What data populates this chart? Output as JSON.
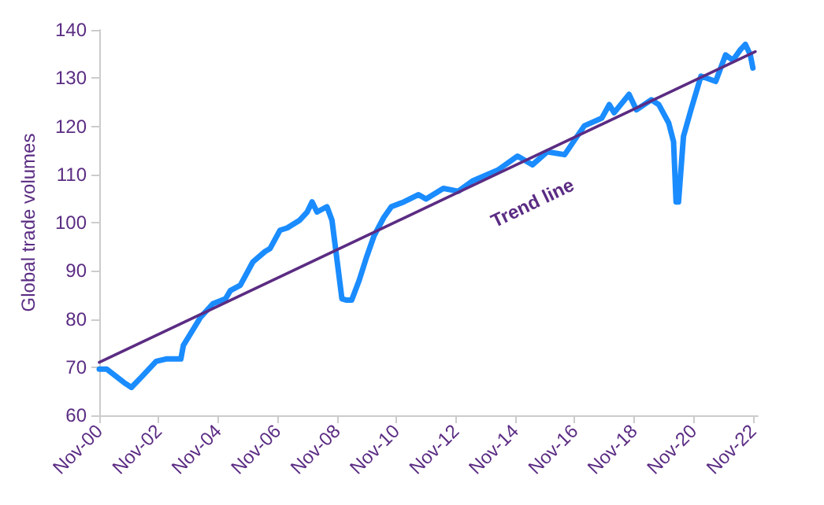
{
  "chart_data": {
    "type": "line",
    "ylabel": "Global trade volumes",
    "xlim": [
      "2000-11",
      "2023-01"
    ],
    "ylim": [
      60,
      140
    ],
    "yticks": [
      60,
      70,
      80,
      90,
      100,
      110,
      120,
      130,
      140
    ],
    "xticks": [
      {
        "value": "2000-11",
        "label": "Nov-00"
      },
      {
        "value": "2002-11",
        "label": "Nov-02"
      },
      {
        "value": "2004-11",
        "label": "Nov-04"
      },
      {
        "value": "2006-11",
        "label": "Nov-06"
      },
      {
        "value": "2008-11",
        "label": "Nov-08"
      },
      {
        "value": "2010-11",
        "label": "Nov-10"
      },
      {
        "value": "2012-11",
        "label": "Nov-12"
      },
      {
        "value": "2014-11",
        "label": "Nov-14"
      },
      {
        "value": "2016-11",
        "label": "Nov-16"
      },
      {
        "value": "2018-11",
        "label": "Nov-18"
      },
      {
        "value": "2020-11",
        "label": "Nov-20"
      },
      {
        "value": "2022-11",
        "label": "Nov-22"
      }
    ],
    "grid": false,
    "marker": "none",
    "series": [
      {
        "color": "#1a8cff",
        "x": [
          "2000-11",
          "2001-02",
          "2001-09",
          "2001-12",
          "2002-04",
          "2002-10",
          "2003-02",
          "2003-08",
          "2003-09",
          "2004-04",
          "2004-09",
          "2005-02",
          "2005-04",
          "2005-08",
          "2006-01",
          "2006-06",
          "2006-08",
          "2006-12",
          "2007-03",
          "2007-08",
          "2007-11",
          "2008-01",
          "2008-03",
          "2008-07",
          "2008-09",
          "2009-01",
          "2009-03",
          "2009-05",
          "2009-08",
          "2009-11",
          "2010-02",
          "2010-06",
          "2010-09",
          "2011-02",
          "2011-08",
          "2011-11",
          "2012-06",
          "2012-12",
          "2013-06",
          "2014-04",
          "2014-12",
          "2015-06",
          "2015-12",
          "2016-07",
          "2016-12",
          "2017-03",
          "2017-10",
          "2018-01",
          "2018-03",
          "2018-09",
          "2018-12",
          "2019-06",
          "2019-09",
          "2020-01",
          "2020-03",
          "2020-04",
          "2020-05",
          "2020-07",
          "2020-10",
          "2021-02",
          "2021-08",
          "2021-12",
          "2022-03",
          "2022-06",
          "2022-08",
          "2022-10",
          "2022-11"
        ],
        "values": [
          69.6,
          69.6,
          66.8,
          65.8,
          67.9,
          71.2,
          71.7,
          71.7,
          74.5,
          80.4,
          83.2,
          84.2,
          85.9,
          87.0,
          91.8,
          94.0,
          94.6,
          98.4,
          98.9,
          100.5,
          102.2,
          104.3,
          102.2,
          103.3,
          100.5,
          84.2,
          83.9,
          83.9,
          88.0,
          92.9,
          97.3,
          101.1,
          103.3,
          104.3,
          105.8,
          104.9,
          107.1,
          106.5,
          108.7,
          110.9,
          113.8,
          112.0,
          114.7,
          114.1,
          117.9,
          120.1,
          121.7,
          124.5,
          122.8,
          126.6,
          123.4,
          125.5,
          124.5,
          120.7,
          116.8,
          104.3,
          104.3,
          117.9,
          123.4,
          130.4,
          129.3,
          134.8,
          133.7,
          135.9,
          137.0,
          134.8,
          132.1
        ]
      },
      {
        "color": "#5b2c83",
        "x": [
          "2000-11",
          "2022-12"
        ],
        "values": [
          71,
          135.5
        ]
      }
    ],
    "annotations": [
      "Trend line"
    ]
  }
}
